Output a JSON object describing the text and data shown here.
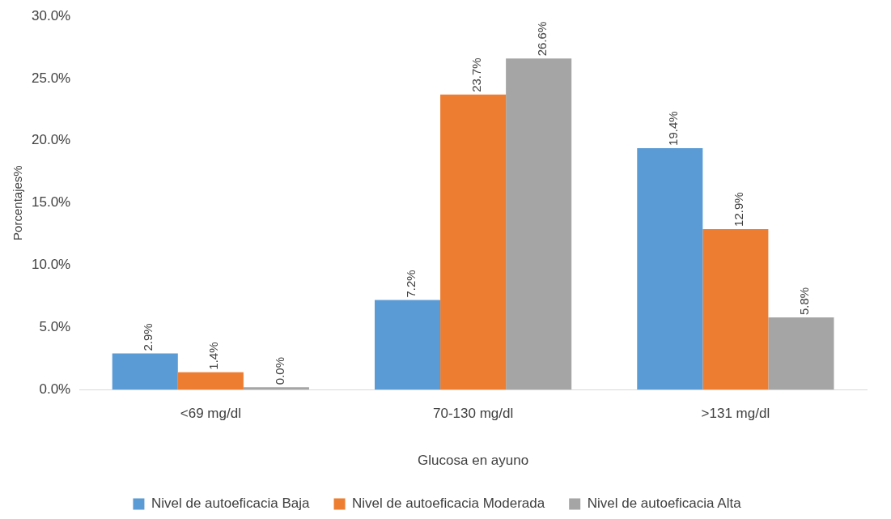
{
  "chart_data": {
    "type": "bar",
    "xlabel": "Glucosa en ayuno",
    "ylabel": "Porcentajes%",
    "categories": [
      "<69 mg/dl",
      "70-130 mg/dl",
      ">131 mg/dl"
    ],
    "series": [
      {
        "name": "Nivel de autoeficacia Baja",
        "color": "#5b9bd5",
        "values": [
          2.9,
          7.2,
          19.4
        ],
        "value_labels": [
          "2.9%",
          "7.2%",
          "19.4%"
        ]
      },
      {
        "name": "Nivel de autoeficacia Moderada",
        "color": "#ed7d31",
        "values": [
          1.4,
          23.7,
          12.9
        ],
        "value_labels": [
          "1.4%",
          "23.7%",
          "12.9%"
        ]
      },
      {
        "name": "Nivel de autoeficacia Alta",
        "color": "#a5a5a5",
        "values": [
          0.0,
          26.6,
          5.8
        ],
        "value_labels": [
          "0.0%",
          "26.6%",
          "5.8%"
        ]
      }
    ],
    "ylim": [
      0,
      30
    ],
    "yticks": [
      {
        "value": 0,
        "label": "0.0%"
      },
      {
        "value": 5,
        "label": "5.0%"
      },
      {
        "value": 10,
        "label": "10.0%"
      },
      {
        "value": 15,
        "label": "15.0%"
      },
      {
        "value": 20,
        "label": "20.0%"
      },
      {
        "value": 25,
        "label": "25.0%"
      },
      {
        "value": 30,
        "label": "30.0%"
      }
    ],
    "grid": false,
    "legend": "bottom"
  }
}
